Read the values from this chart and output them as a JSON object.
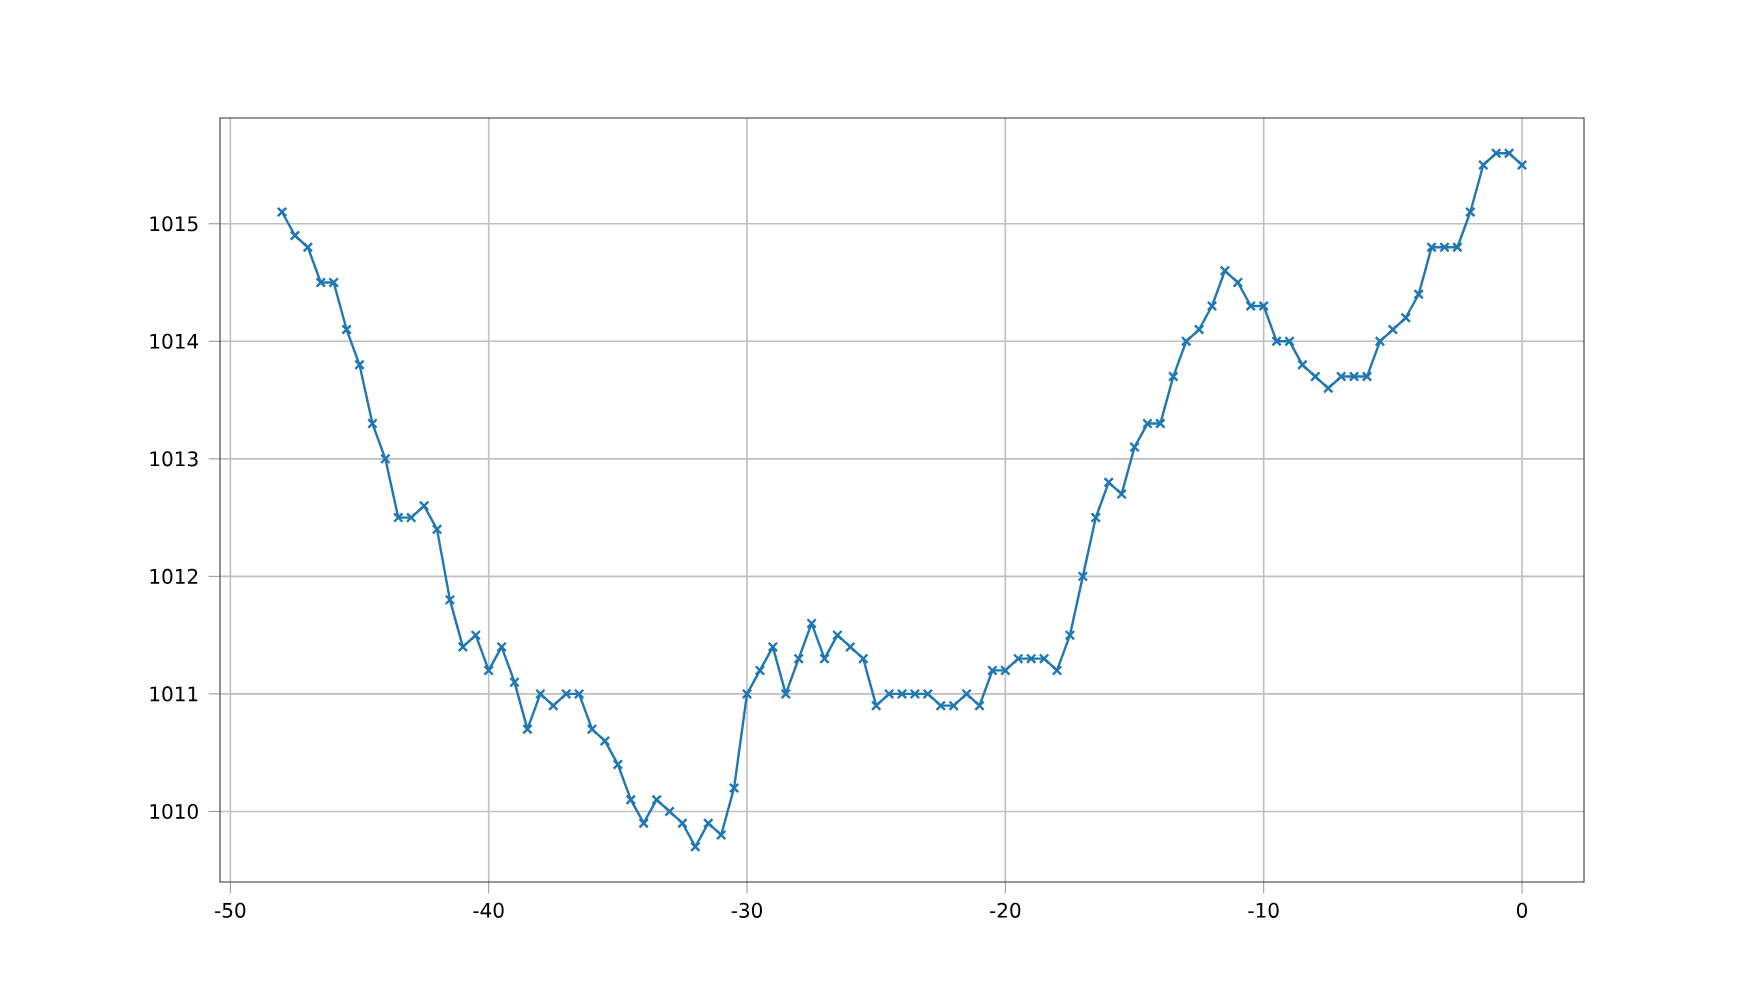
{
  "chart_data": {
    "type": "line",
    "x": [
      -48,
      -47.5,
      -47,
      -46.5,
      -46,
      -45.5,
      -45,
      -44.5,
      -44,
      -43.5,
      -43,
      -42.5,
      -42,
      -41.5,
      -41,
      -40.5,
      -40,
      -39.5,
      -39,
      -38.5,
      -38,
      -37.5,
      -37,
      -36.5,
      -36,
      -35.5,
      -35,
      -34.5,
      -34,
      -33.5,
      -33,
      -32.5,
      -32,
      -31.5,
      -31,
      -30.5,
      -30,
      -29.5,
      -29,
      -28.5,
      -28,
      -27.5,
      -27,
      -26.5,
      -26,
      -25.5,
      -25,
      -24.5,
      -24,
      -23.5,
      -23,
      -22.5,
      -22,
      -21.5,
      -21,
      -20.5,
      -20,
      -19.5,
      -19,
      -18.5,
      -18,
      -17.5,
      -17,
      -16.5,
      -16,
      -15.5,
      -15,
      -14.5,
      -14,
      -13.5,
      -13,
      -12.5,
      -12,
      -11.5,
      -11,
      -10.5,
      -10,
      -9.5,
      -9,
      -8.5,
      -8,
      -7.5,
      -7,
      -6.5,
      -6,
      -5.5,
      -5,
      -4.5,
      -4,
      -3.5,
      -3,
      -2.5,
      -2,
      -1.5,
      -1,
      -0.5,
      0
    ],
    "series": [
      {
        "color": "#1f77b4",
        "values": [
          1015.1,
          1014.9,
          1014.8,
          1014.5,
          1014.5,
          1014.1,
          1013.8,
          1013.3,
          1013.0,
          1012.5,
          1012.5,
          1012.6,
          1012.4,
          1011.8,
          1011.4,
          1011.5,
          1011.2,
          1011.4,
          1011.1,
          1010.7,
          1011.0,
          1010.9,
          1011.0,
          1011.0,
          1010.7,
          1010.6,
          1010.4,
          1010.1,
          1009.9,
          1010.1,
          1010.0,
          1009.9,
          1009.7,
          1009.9,
          1009.8,
          1010.2,
          1011.0,
          1011.2,
          1011.4,
          1011.0,
          1011.3,
          1011.6,
          1011.3,
          1011.5,
          1011.4,
          1011.3,
          1010.9,
          1011.0,
          1011.0,
          1011.0,
          1011.0,
          1010.9,
          1010.9,
          1011.0,
          1010.9,
          1011.2,
          1011.2,
          1011.3,
          1011.3,
          1011.3,
          1011.2,
          1011.5,
          1012.0,
          1012.5,
          1012.8,
          1012.7,
          1013.1,
          1013.3,
          1013.3,
          1013.7,
          1014.0,
          1014.1,
          1014.3,
          1014.6,
          1014.5,
          1014.3,
          1014.3,
          1014.0,
          1014.0,
          1013.8,
          1013.7,
          1013.6,
          1013.7,
          1013.7,
          1013.7,
          1014.0,
          1014.1,
          1014.2,
          1014.4,
          1014.8,
          1014.8,
          1014.8,
          1015.1,
          1015.5,
          1015.6,
          1015.6,
          1015.5
        ]
      }
    ],
    "xlim": [
      -50.4,
      2.4
    ],
    "ylim": [
      1009.4,
      1015.9
    ],
    "xticks": [
      -50,
      -40,
      -30,
      -20,
      -10,
      0
    ],
    "yticks": [
      1010,
      1011,
      1012,
      1013,
      1014,
      1015
    ],
    "grid": true,
    "marker": "cross",
    "line_style": "solid"
  }
}
